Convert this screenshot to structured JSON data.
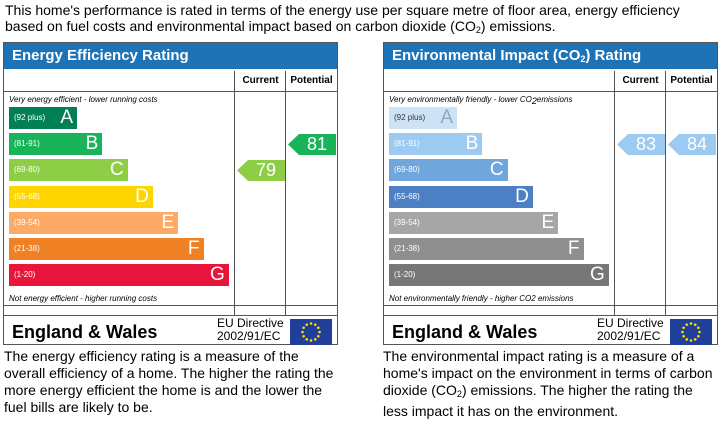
{
  "intro": {
    "text_before": "This home's performance is rated in terms of the energy use per square metre of floor area, energy efficiency based on fuel costs and environmental impact based on carbon dioxide (CO",
    "sub": "2",
    "text_after": ") emissions."
  },
  "columns": {
    "current": "Current",
    "potential": "Potential"
  },
  "footer": {
    "region": "England & Wales",
    "directive_line1": "EU Directive",
    "directive_line2": "2002/91/EC"
  },
  "colors": {
    "title_bg": "#1e73b6"
  },
  "chart_data": [
    {
      "type": "bar",
      "title": "Energy Efficiency Rating",
      "top_note": "Very energy efficient - lower running costs",
      "bottom_note": "Not energy efficient - higher running costs",
      "bands": [
        {
          "range": "(92 plus)",
          "letter": "A",
          "color": "#008054",
          "text_color": "#ffffff"
        },
        {
          "range": "(81-91)",
          "letter": "B",
          "color": "#19b459",
          "text_color": "#ffffff"
        },
        {
          "range": "(69-80)",
          "letter": "C",
          "color": "#8dce46",
          "text_color": "#ffffff"
        },
        {
          "range": "(55-68)",
          "letter": "D",
          "color": "#ffd500",
          "text_color": "#ffffff"
        },
        {
          "range": "(39-54)",
          "letter": "E",
          "color": "#fcaa65",
          "text_color": "#ffffff"
        },
        {
          "range": "(21-38)",
          "letter": "F",
          "color": "#ef8023",
          "text_color": "#ffffff"
        },
        {
          "range": "(1-20)",
          "letter": "G",
          "color": "#e9153b",
          "text_color": "#ffffff"
        }
      ],
      "current": {
        "value": 79,
        "band": "C",
        "color": "#8dce46"
      },
      "potential": {
        "value": 81,
        "band": "B",
        "color": "#19b459"
      },
      "description": "The energy efficiency rating is a measure of the overall efficiency of a home. The higher the rating the more energy efficient the home is and the lower the fuel bills are likely to be."
    },
    {
      "type": "bar",
      "title_before": "Environmental Impact (CO",
      "title_sub": "2",
      "title_after": ") Rating",
      "top_note_before": "Very environmentally friendly - lower CO",
      "top_note_sub": "2",
      "top_note_after": "emissions",
      "bottom_note": "Not environmentally friendly - higher CO2 emissions",
      "bands": [
        {
          "range": "(92 plus)",
          "letter": "A",
          "color": "#cde2f5",
          "text_color": "#8aa7c4"
        },
        {
          "range": "(81-91)",
          "letter": "B",
          "color": "#9ccaf0",
          "text_color": "#ffffff"
        },
        {
          "range": "(69-80)",
          "letter": "C",
          "color": "#6fa6dc",
          "text_color": "#ffffff"
        },
        {
          "range": "(55-68)",
          "letter": "D",
          "color": "#4c7fc4",
          "text_color": "#ffffff"
        },
        {
          "range": "(39-54)",
          "letter": "E",
          "color": "#a6a6a6",
          "text_color": "#ffffff"
        },
        {
          "range": "(21-38)",
          "letter": "F",
          "color": "#8f8f8f",
          "text_color": "#ffffff"
        },
        {
          "range": "(1-20)",
          "letter": "G",
          "color": "#777777",
          "text_color": "#ffffff"
        }
      ],
      "current": {
        "value": 83,
        "band": "B",
        "color": "#9ccaf0"
      },
      "potential": {
        "value": 84,
        "band": "B",
        "color": "#9ccaf0"
      },
      "description_before": "The environmental impact rating is a measure of a home's impact on the environment in terms of carbon dioxide (CO",
      "description_sub": "2",
      "description_after": ") emissions. The higher the rating the less impact it has on the environment."
    }
  ]
}
